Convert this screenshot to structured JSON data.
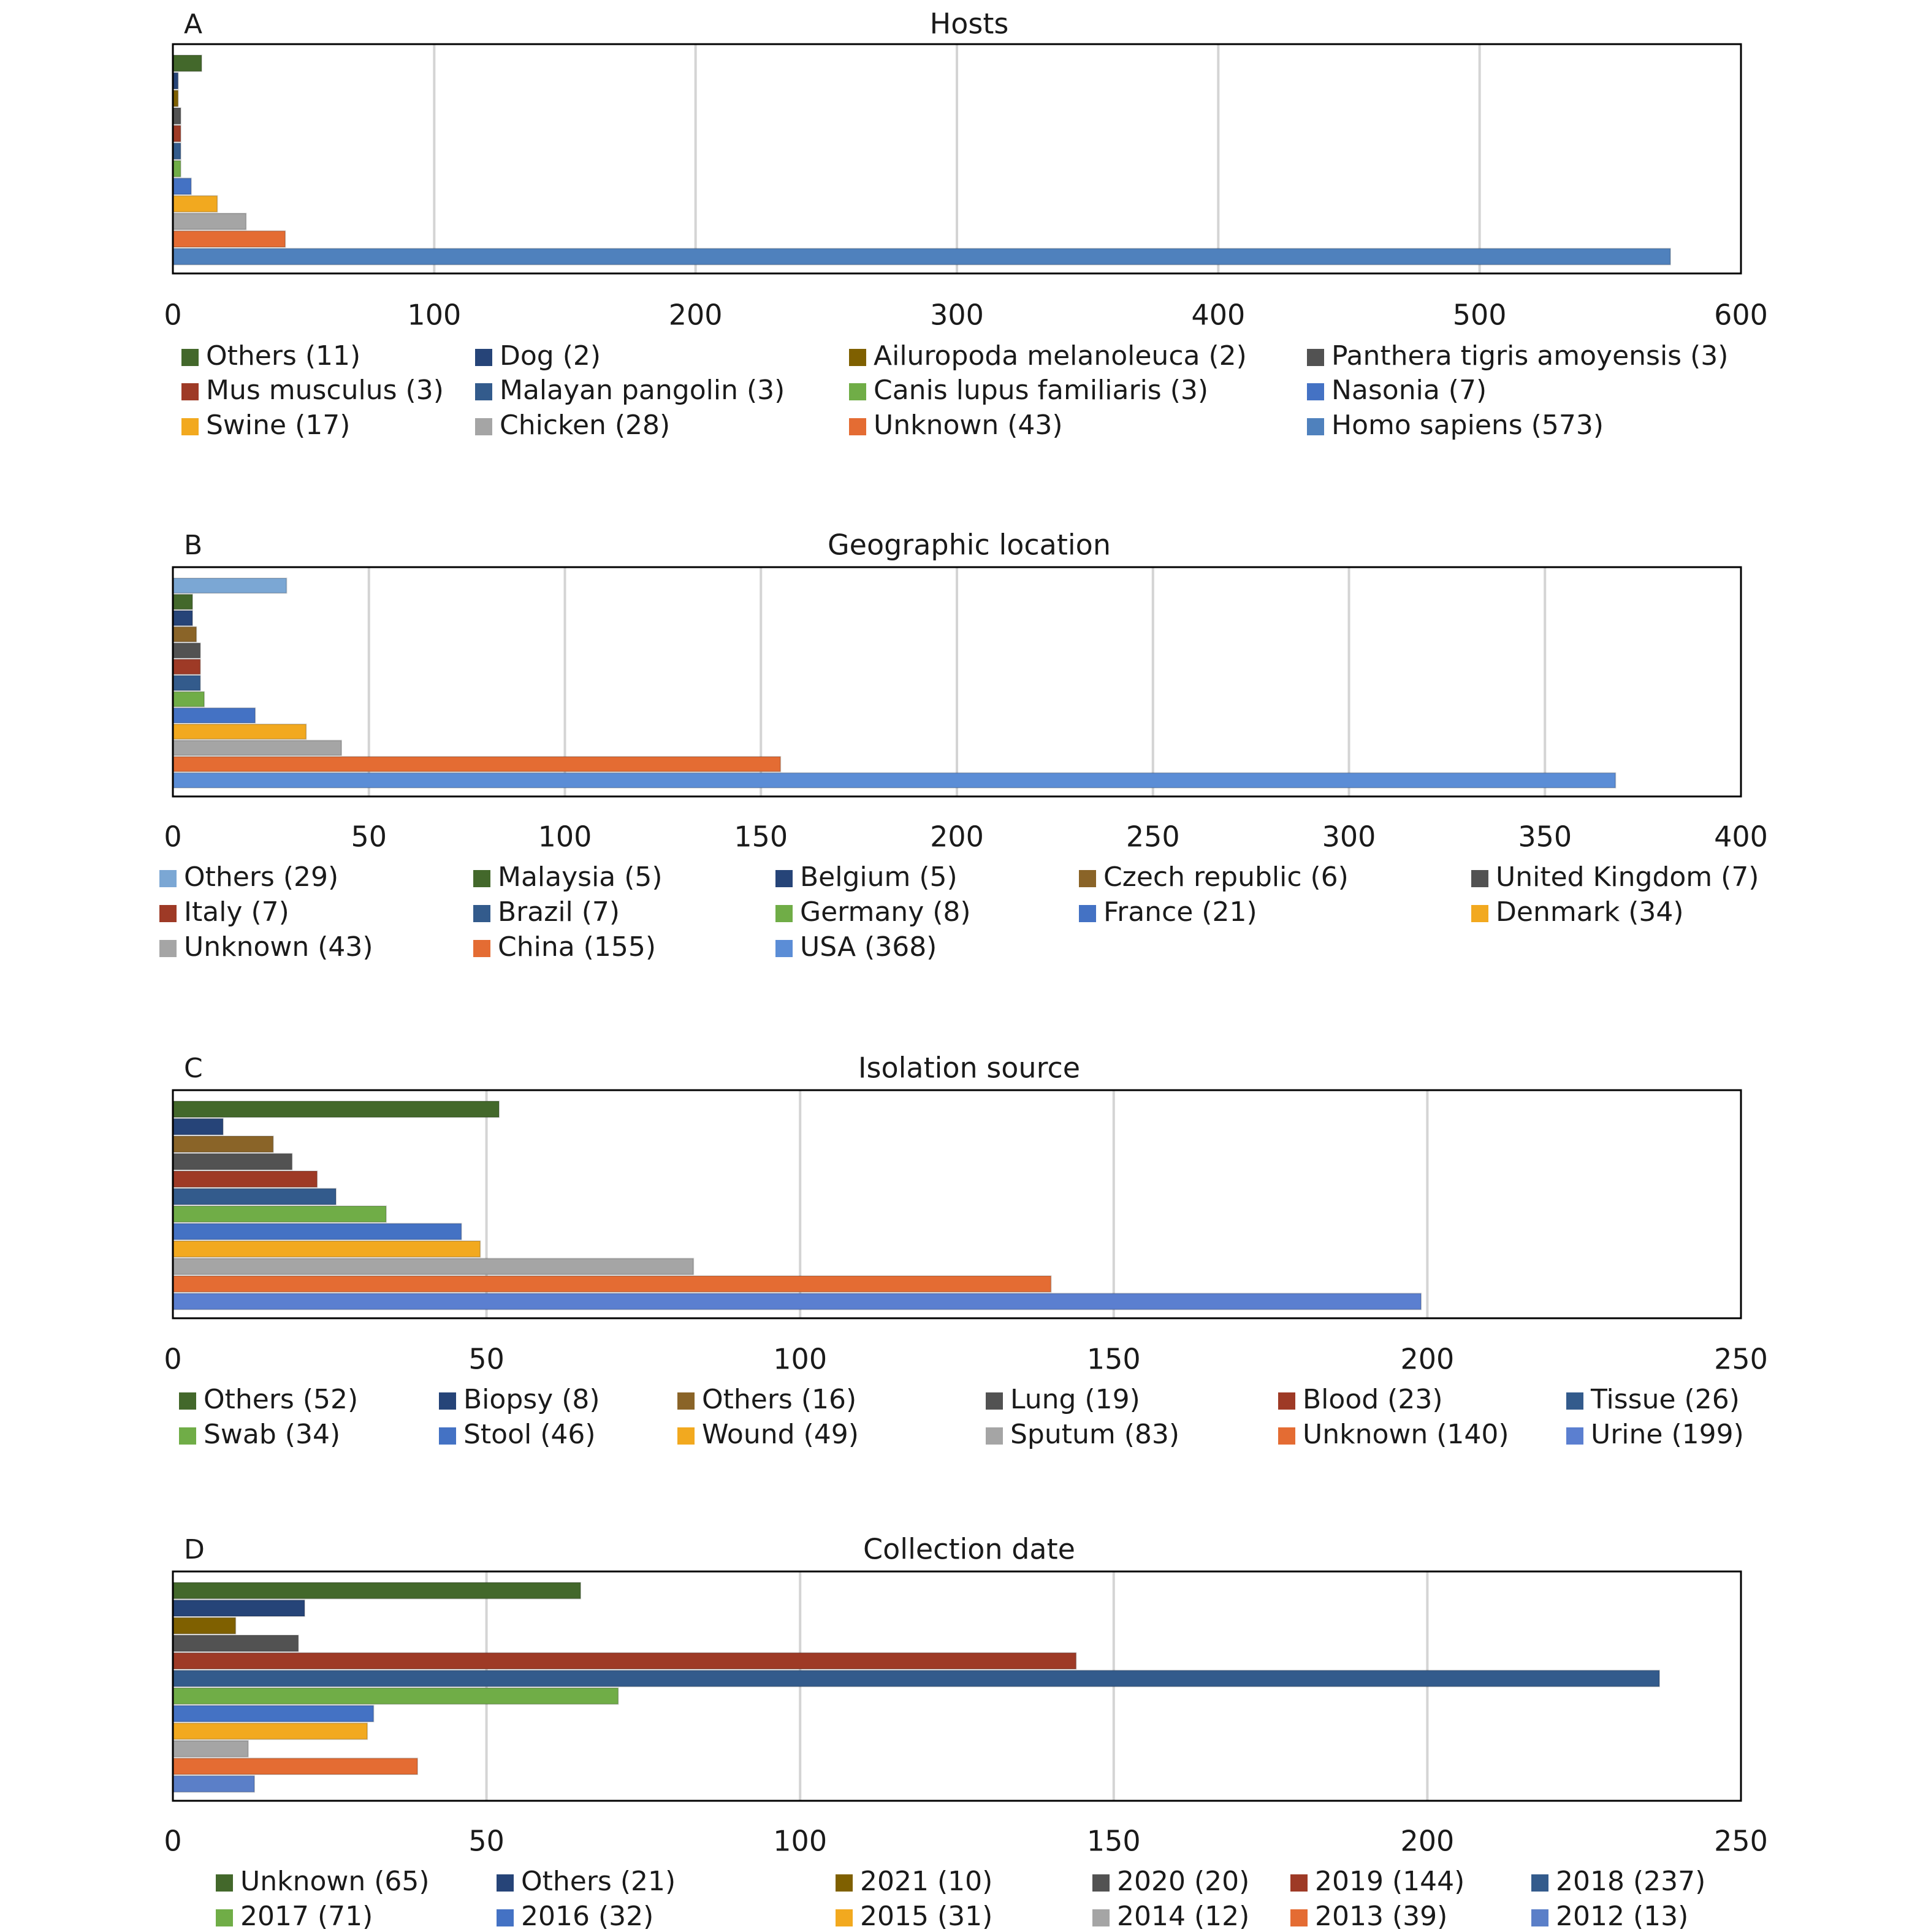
{
  "chart_data": [
    {
      "type": "bar",
      "orientation": "horizontal",
      "panel_label": "A",
      "title": "Hosts",
      "xlim": [
        0,
        600
      ],
      "xticks": [
        "0",
        "100",
        "200",
        "300",
        "400",
        "500",
        "600"
      ],
      "grid": true,
      "legend_columns": 4,
      "series": [
        {
          "name": "Others (11)",
          "value": 11,
          "color": "#43682b"
        },
        {
          "name": "Dog (2)",
          "value": 2,
          "color": "#264478"
        },
        {
          "name": "Ailuropoda melanoleuca (2)",
          "value": 2,
          "color": "#7f6000"
        },
        {
          "name": "Panthera tigris amoyensis (3)",
          "value": 3,
          "color": "#525252"
        },
        {
          "name": "Mus musculus (3)",
          "value": 3,
          "color": "#9e3a26"
        },
        {
          "name": "Malayan pangolin (3)",
          "value": 3,
          "color": "#335b8c"
        },
        {
          "name": "Canis lupus familiaris (3)",
          "value": 3,
          "color": "#70ad47"
        },
        {
          "name": "Nasonia (7)",
          "value": 7,
          "color": "#4472c4"
        },
        {
          "name": "Swine (17)",
          "value": 17,
          "color": "#f2a91f"
        },
        {
          "name": "Chicken (28)",
          "value": 28,
          "color": "#a5a5a5"
        },
        {
          "name": "Unknown (43)",
          "value": 43,
          "color": "#e46c33"
        },
        {
          "name": "Homo sapiens (573)",
          "value": 573,
          "color": "#4f81bd"
        }
      ]
    },
    {
      "type": "bar",
      "orientation": "horizontal",
      "panel_label": "B",
      "title": "Geographic location",
      "xlim": [
        0,
        400
      ],
      "xticks": [
        "0",
        "50",
        "100",
        "150",
        "200",
        "250",
        "300",
        "350",
        "400"
      ],
      "grid": true,
      "legend_columns": 5,
      "series": [
        {
          "name": "Others (29)",
          "value": 29,
          "color": "#7ba7d4"
        },
        {
          "name": "Malaysia (5)",
          "value": 5,
          "color": "#43682b"
        },
        {
          "name": "Belgium (5)",
          "value": 5,
          "color": "#264478"
        },
        {
          "name": "Czech republic (6)",
          "value": 6,
          "color": "#8a6428"
        },
        {
          "name": "United Kingdom (7)",
          "value": 7,
          "color": "#525252"
        },
        {
          "name": "Italy (7)",
          "value": 7,
          "color": "#9e3a26"
        },
        {
          "name": "Brazil (7)",
          "value": 7,
          "color": "#335b8c"
        },
        {
          "name": "Germany (8)",
          "value": 8,
          "color": "#70ad47"
        },
        {
          "name": "France (21)",
          "value": 21,
          "color": "#4472c4"
        },
        {
          "name": "Denmark (34)",
          "value": 34,
          "color": "#f2a91f"
        },
        {
          "name": "Unknown (43)",
          "value": 43,
          "color": "#a5a5a5"
        },
        {
          "name": "China (155)",
          "value": 155,
          "color": "#e46c33"
        },
        {
          "name": "USA (368)",
          "value": 368,
          "color": "#5b8dd6"
        }
      ]
    },
    {
      "type": "bar",
      "orientation": "horizontal",
      "panel_label": "C",
      "title": "Isolation source",
      "xlim": [
        0,
        250
      ],
      "xticks": [
        "0",
        "50",
        "100",
        "150",
        "200",
        "250"
      ],
      "grid": true,
      "legend_columns": 6,
      "series": [
        {
          "name": "Others (52)",
          "value": 52,
          "color": "#43682b"
        },
        {
          "name": "Biopsy (8)",
          "value": 8,
          "color": "#264478"
        },
        {
          "name": "Others (16)",
          "value": 16,
          "color": "#8a6428"
        },
        {
          "name": "Lung (19)",
          "value": 19,
          "color": "#525252"
        },
        {
          "name": "Blood (23)",
          "value": 23,
          "color": "#9e3a26"
        },
        {
          "name": "Tissue (26)",
          "value": 26,
          "color": "#335b8c"
        },
        {
          "name": "Swab (34)",
          "value": 34,
          "color": "#70ad47"
        },
        {
          "name": "Stool (46)",
          "value": 46,
          "color": "#4472c4"
        },
        {
          "name": "Wound (49)",
          "value": 49,
          "color": "#f2a91f"
        },
        {
          "name": "Sputum (83)",
          "value": 83,
          "color": "#a5a5a5"
        },
        {
          "name": "Unknown (140)",
          "value": 140,
          "color": "#e46c33"
        },
        {
          "name": "Urine (199)",
          "value": 199,
          "color": "#5b7fd0"
        }
      ]
    },
    {
      "type": "bar",
      "orientation": "horizontal",
      "panel_label": "D",
      "title": "Collection date",
      "xlim": [
        0,
        250
      ],
      "xticks": [
        "0",
        "50",
        "100",
        "150",
        "200",
        "250"
      ],
      "grid": true,
      "legend_columns": 6,
      "series": [
        {
          "name": "Unknown (65)",
          "value": 65,
          "color": "#43682b"
        },
        {
          "name": "Others (21)",
          "value": 21,
          "color": "#264478"
        },
        {
          "name": "2021 (10)",
          "value": 10,
          "color": "#7f6000"
        },
        {
          "name": "2020 (20)",
          "value": 20,
          "color": "#525252"
        },
        {
          "name": "2019 (144)",
          "value": 144,
          "color": "#9e3a26"
        },
        {
          "name": "2018 (237)",
          "value": 237,
          "color": "#335b8c"
        },
        {
          "name": "2017 (71)",
          "value": 71,
          "color": "#70ad47"
        },
        {
          "name": "2016 (32)",
          "value": 32,
          "color": "#4472c4"
        },
        {
          "name": "2015 (31)",
          "value": 31,
          "color": "#f2a91f"
        },
        {
          "name": "2014 (12)",
          "value": 12,
          "color": "#a5a5a5"
        },
        {
          "name": "2013 (39)",
          "value": 39,
          "color": "#e46c33"
        },
        {
          "name": "2012 (13)",
          "value": 13,
          "color": "#5b7fc8"
        }
      ]
    }
  ]
}
